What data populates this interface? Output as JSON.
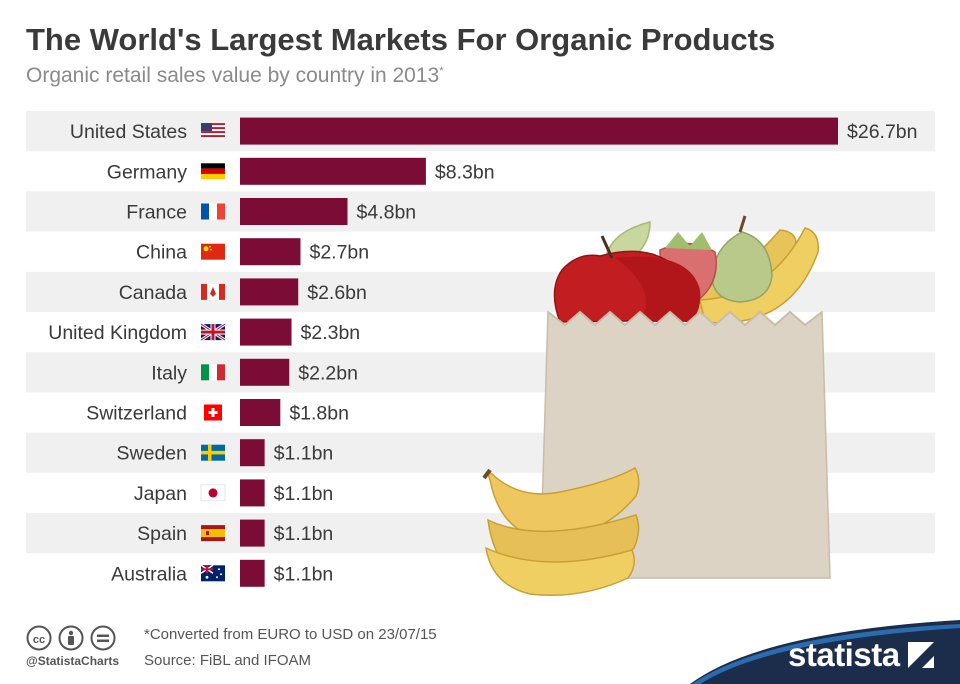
{
  "header": {
    "title": "The World's Largest Markets For Organic Products",
    "subtitle": "Organic retail sales value by country in 2013",
    "subtitle_mark": "*"
  },
  "chart_data": {
    "type": "bar",
    "orientation": "horizontal",
    "title": "The World's Largest Markets For Organic Products",
    "subtitle": "Organic retail sales value by country in 2013*",
    "categories": [
      "United States",
      "Germany",
      "France",
      "China",
      "Canada",
      "United Kingdom",
      "Italy",
      "Switzerland",
      "Sweden",
      "Japan",
      "Spain",
      "Australia"
    ],
    "values": [
      26.7,
      8.3,
      4.8,
      2.7,
      2.6,
      2.3,
      2.2,
      1.8,
      1.1,
      1.1,
      1.1,
      1.1
    ],
    "value_labels": [
      "$26.7bn",
      "$8.3bn",
      "$4.8bn",
      "$2.7bn",
      "$2.6bn",
      "$2.3bn",
      "$2.2bn",
      "$1.8bn",
      "$1.1bn",
      "$1.1bn",
      "$1.1bn",
      "$1.1bn"
    ],
    "unit": "bn USD",
    "flags": [
      "us",
      "de",
      "fr",
      "cn",
      "ca",
      "gb",
      "it",
      "ch",
      "se",
      "jp",
      "es",
      "au"
    ],
    "xlabel": "",
    "ylabel": "",
    "xlim": [
      0,
      26.7
    ],
    "grid": false,
    "legend": "none",
    "bar_color": "#7b0c36"
  },
  "colors": {
    "bar": "#7b0c36",
    "row_stripe": "#f0f0f0",
    "title": "#3a3a3a",
    "subtitle": "#8a8a8a",
    "brand_band": "#1b2d4a",
    "brand_accent": "#2b6cb0"
  },
  "footer": {
    "note": "*Converted from EURO to USD on 23/07/15",
    "source": "Source: FiBL and IFOAM",
    "handle": "@StatistaCharts",
    "brand": "statista",
    "icons": [
      "creative-commons-icon",
      "attribution-icon",
      "no-derivatives-icon"
    ]
  }
}
